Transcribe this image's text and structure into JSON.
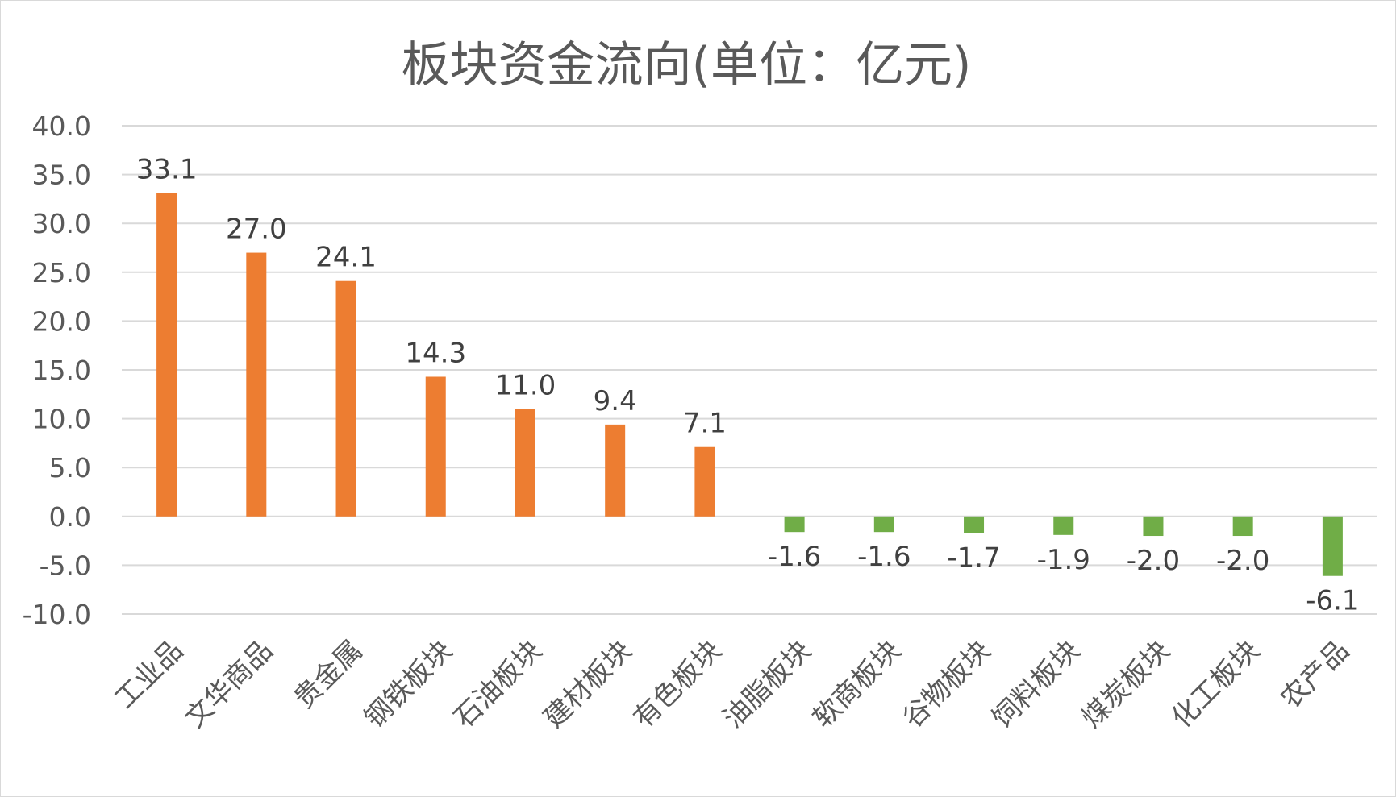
{
  "chart_data": {
    "type": "bar",
    "title": "板块资金流向(单位：亿元)",
    "categories": [
      "工业品",
      "文华商品",
      "贵金属",
      "钢铁板块",
      "石油板块",
      "建材板块",
      "有色板块",
      "油脂板块",
      "软商板块",
      "谷物板块",
      "饲料板块",
      "煤炭板块",
      "化工板块",
      "农产品"
    ],
    "values": [
      33.1,
      27.0,
      24.1,
      14.3,
      11.0,
      9.4,
      7.1,
      -1.6,
      -1.6,
      -1.7,
      -1.9,
      -2.0,
      -2.0,
      -6.1
    ],
    "value_labels": [
      "33.1",
      "27.0",
      "24.1",
      "14.3",
      "11.0",
      "9.4",
      "7.1",
      "-1.6",
      "-1.6",
      "-1.7",
      "-1.9",
      "-2.0",
      "-2.0",
      "-6.1"
    ],
    "ylim": [
      -10,
      40
    ],
    "y_ticks": [
      40,
      35,
      30,
      25,
      20,
      15,
      10,
      5,
      0,
      -5,
      -10
    ],
    "y_tick_labels": [
      "40.0",
      "35.0",
      "30.0",
      "25.0",
      "20.0",
      "15.0",
      "10.0",
      "5.0",
      "0.0",
      "-5.0",
      "-10.0"
    ],
    "grid": true,
    "positive_color": "#ed7d31",
    "negative_color": "#70ad47",
    "grid_color": "#d9d9d9",
    "xlabel": "",
    "ylabel": ""
  }
}
